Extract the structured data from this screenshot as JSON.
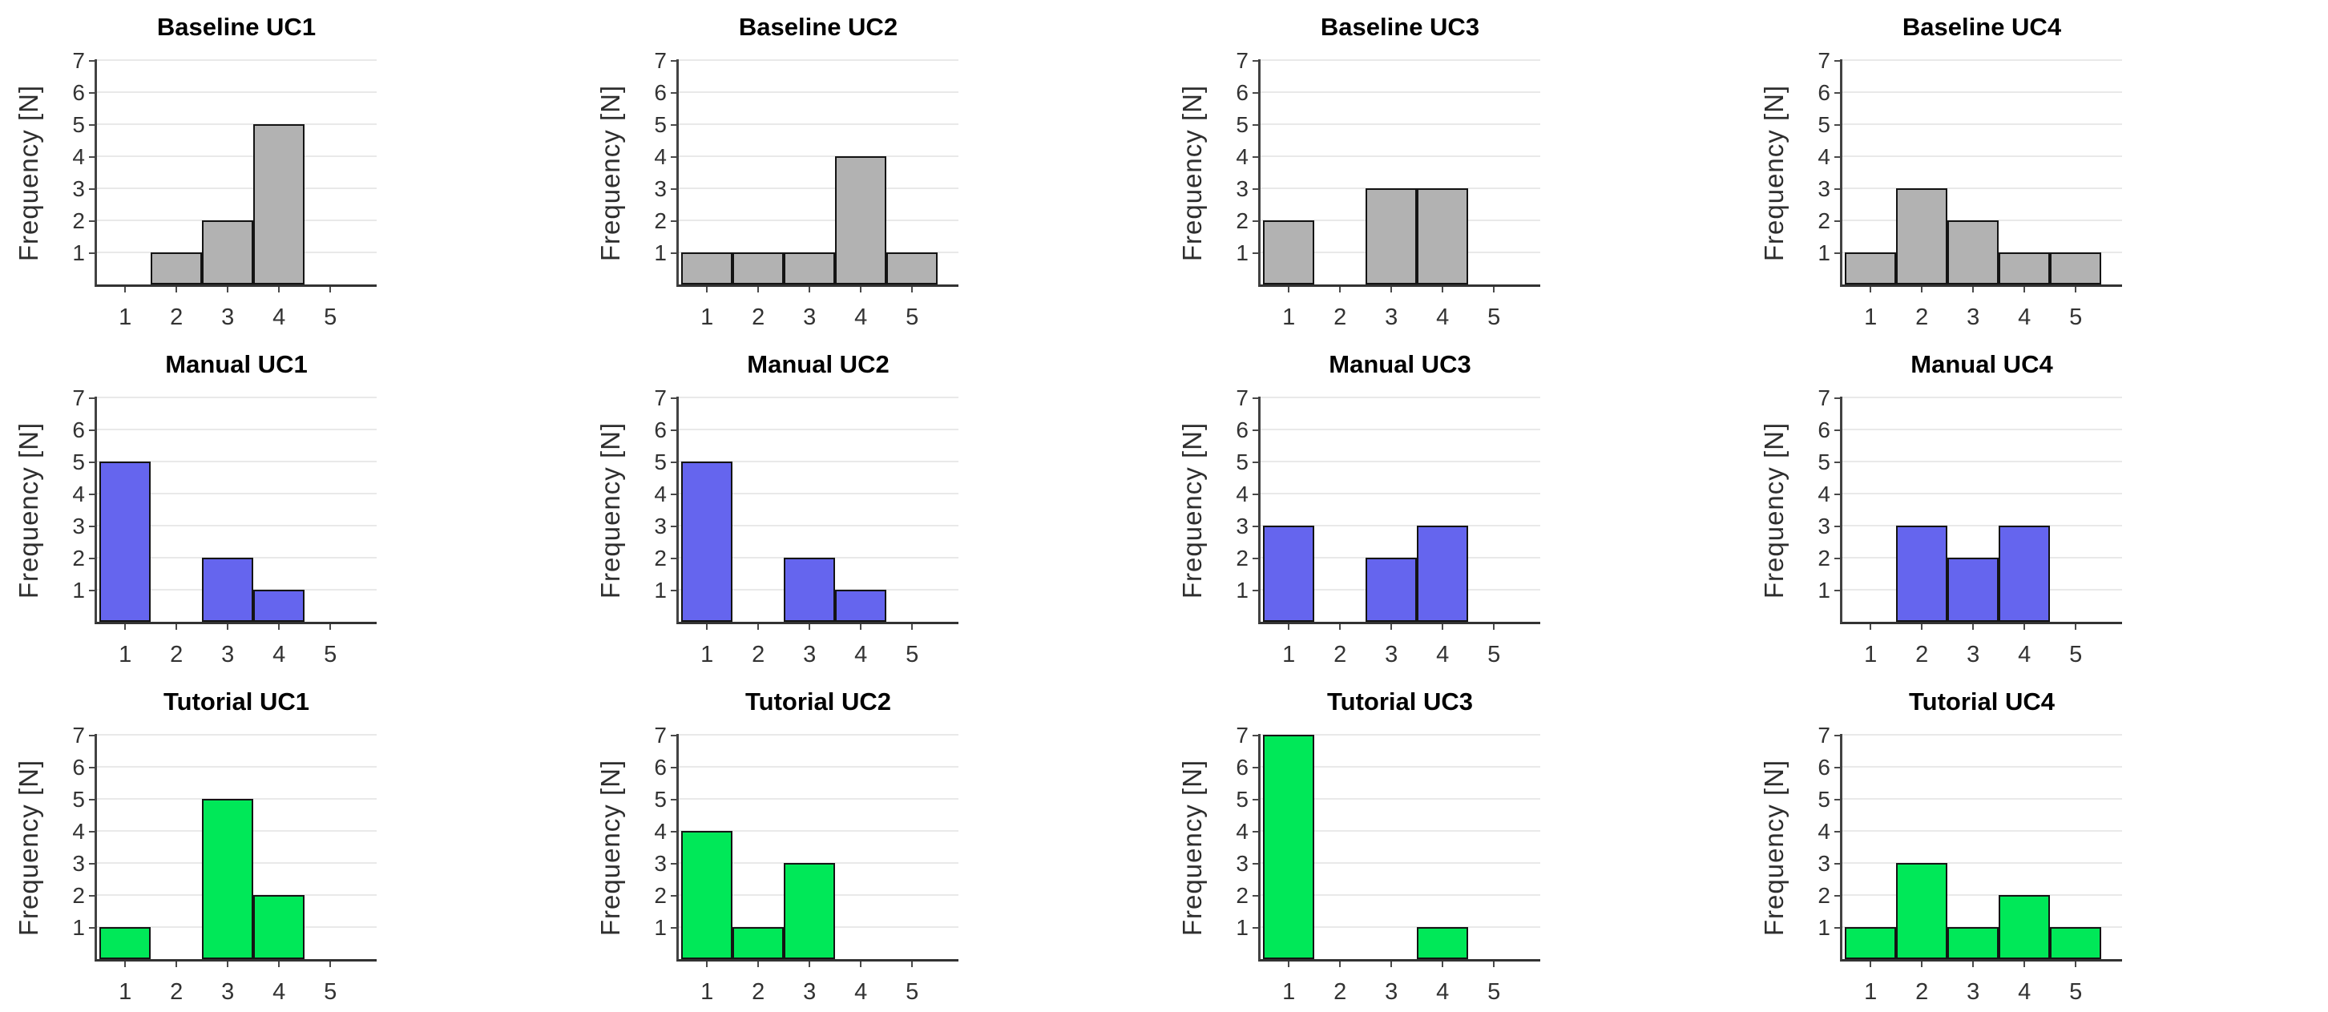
{
  "figure": {
    "ylabel": "Frequency [N]",
    "x_ticks": [
      1,
      2,
      3,
      4,
      5
    ],
    "y_ticks": [
      1,
      2,
      3,
      4,
      5,
      6,
      7
    ],
    "ylim": [
      0,
      7
    ],
    "xlim": [
      0.45,
      5.95
    ],
    "grid": true,
    "layout": {
      "rows": 3,
      "cols": 4,
      "row_groups": [
        "Baseline",
        "Manual",
        "Tutorial"
      ],
      "col_groups": [
        "UC1",
        "UC2",
        "UC3",
        "UC4"
      ]
    },
    "row_colors": {
      "Baseline": "#b2b2b2",
      "Manual": "#6565ee",
      "Tutorial": "#00e858"
    },
    "bar_edge_color": "#141414"
  },
  "chart_data": [
    {
      "type": "bar",
      "title": "Baseline UC1",
      "condition": "Baseline",
      "use_case": "UC1",
      "categories": [
        1,
        2,
        3,
        4,
        5
      ],
      "values": [
        0,
        1,
        2,
        5,
        0
      ],
      "bar_color": "#b2b2b2"
    },
    {
      "type": "bar",
      "title": "Baseline UC2",
      "condition": "Baseline",
      "use_case": "UC2",
      "categories": [
        1,
        2,
        3,
        4,
        5
      ],
      "values": [
        1,
        1,
        1,
        4,
        1
      ],
      "bar_color": "#b2b2b2"
    },
    {
      "type": "bar",
      "title": "Baseline UC3",
      "condition": "Baseline",
      "use_case": "UC3",
      "categories": [
        1,
        2,
        3,
        4,
        5
      ],
      "values": [
        2,
        0,
        3,
        3,
        0
      ],
      "bar_color": "#b2b2b2"
    },
    {
      "type": "bar",
      "title": "Baseline UC4",
      "condition": "Baseline",
      "use_case": "UC4",
      "categories": [
        1,
        2,
        3,
        4,
        5
      ],
      "values": [
        1,
        3,
        2,
        1,
        1
      ],
      "bar_color": "#b2b2b2"
    },
    {
      "type": "bar",
      "title": "Manual UC1",
      "condition": "Manual",
      "use_case": "UC1",
      "categories": [
        1,
        2,
        3,
        4,
        5
      ],
      "values": [
        5,
        0,
        2,
        1,
        0
      ],
      "bar_color": "#6565ee"
    },
    {
      "type": "bar",
      "title": "Manual UC2",
      "condition": "Manual",
      "use_case": "UC2",
      "categories": [
        1,
        2,
        3,
        4,
        5
      ],
      "values": [
        5,
        0,
        2,
        1,
        0
      ],
      "bar_color": "#6565ee"
    },
    {
      "type": "bar",
      "title": "Manual UC3",
      "condition": "Manual",
      "use_case": "UC3",
      "categories": [
        1,
        2,
        3,
        4,
        5
      ],
      "values": [
        3,
        0,
        2,
        3,
        0
      ],
      "bar_color": "#6565ee"
    },
    {
      "type": "bar",
      "title": "Manual UC4",
      "condition": "Manual",
      "use_case": "UC4",
      "categories": [
        1,
        2,
        3,
        4,
        5
      ],
      "values": [
        0,
        3,
        2,
        3,
        0
      ],
      "bar_color": "#6565ee"
    },
    {
      "type": "bar",
      "title": "Tutorial UC1",
      "condition": "Tutorial",
      "use_case": "UC1",
      "categories": [
        1,
        2,
        3,
        4,
        5
      ],
      "values": [
        1,
        0,
        5,
        2,
        0
      ],
      "bar_color": "#00e858"
    },
    {
      "type": "bar",
      "title": "Tutorial UC2",
      "condition": "Tutorial",
      "use_case": "UC2",
      "categories": [
        1,
        2,
        3,
        4,
        5
      ],
      "values": [
        4,
        1,
        3,
        0,
        0
      ],
      "bar_color": "#00e858"
    },
    {
      "type": "bar",
      "title": "Tutorial UC3",
      "condition": "Tutorial",
      "use_case": "UC3",
      "categories": [
        1,
        2,
        3,
        4,
        5
      ],
      "values": [
        7,
        0,
        0,
        1,
        0
      ],
      "bar_color": "#00e858"
    },
    {
      "type": "bar",
      "title": "Tutorial UC4",
      "condition": "Tutorial",
      "use_case": "UC4",
      "categories": [
        1,
        2,
        3,
        4,
        5
      ],
      "values": [
        1,
        3,
        1,
        2,
        1
      ],
      "bar_color": "#00e858"
    }
  ]
}
